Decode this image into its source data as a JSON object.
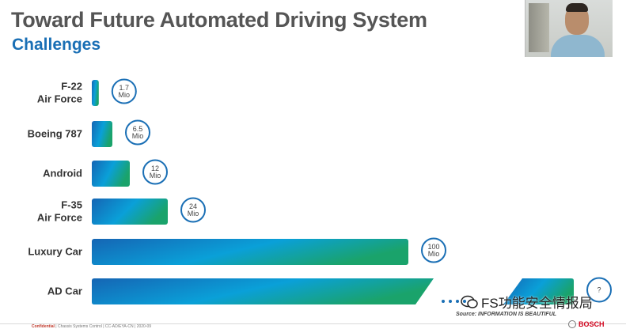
{
  "slide": {
    "title": "Toward Future Automated Driving System",
    "subtitle": "Challenges",
    "source": "Source: INFORMATION IS BEAUTIFUL",
    "watermark": "FS功能安全情报局",
    "footer_confidential": "Confidential",
    "footer_text": "| Chassis Systems Control | CC-AD/EYA-CN | 2020-09",
    "logo_text": "BOSCH"
  },
  "chart_data": {
    "type": "bar",
    "orientation": "horizontal",
    "categories": [
      "F-22\nAir Force",
      "Boeing 787",
      "Android",
      "F-35\nAir Force",
      "Luxury Car",
      "AD Car"
    ],
    "values": [
      1.7,
      6.5,
      12,
      24,
      100,
      null
    ],
    "value_labels": [
      "1.7\nMio",
      "6.5\nMio",
      "12\nMio",
      "24\nMio",
      "100\nMio",
      "?"
    ],
    "unit": "Mio",
    "axis_break_after": "AD Car",
    "colors": {
      "start": "#1565b4",
      "mid": "#0aa0d8",
      "end": "#1aa36b",
      "circle": "#1a6fb5"
    }
  }
}
